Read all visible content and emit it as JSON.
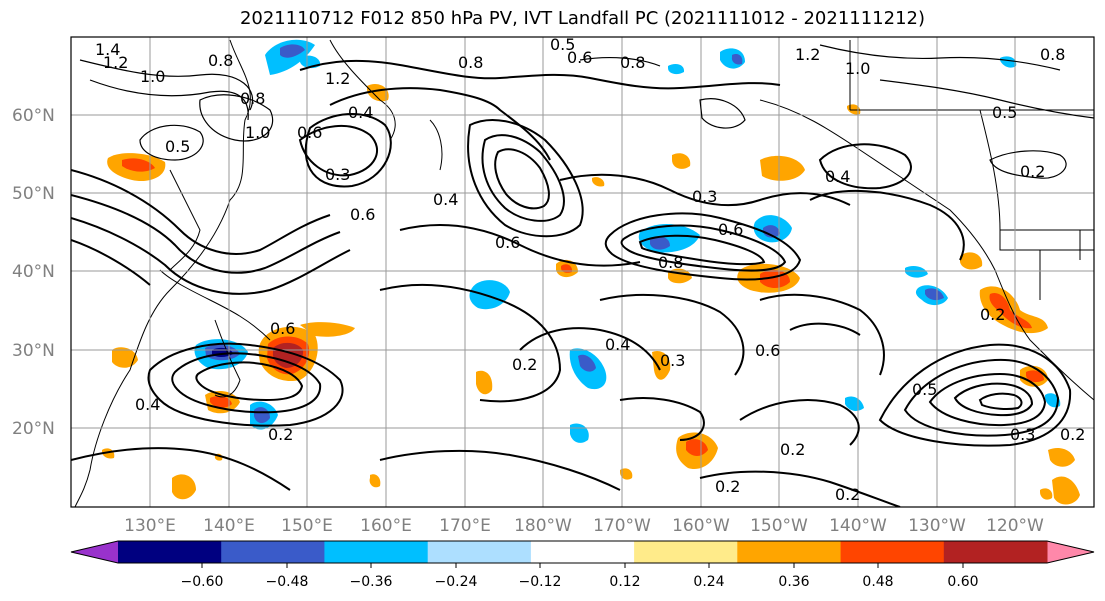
{
  "title": "2021110712 F012 850 hPa PV, IVT Landfall PC (2021111012 - 2021111212)",
  "lat_labels": [
    "60°N",
    "50°N",
    "40°N",
    "30°N",
    "20°N"
  ],
  "lon_labels": [
    "130°E",
    "140°E",
    "150°E",
    "160°E",
    "170°E",
    "180°W",
    "170°W",
    "160°W",
    "150°W",
    "140°W",
    "130°W",
    "120°W"
  ],
  "colorbar": {
    "colors": [
      "#9932CC",
      "#000080",
      "#3A5BC9",
      "#00BFFF",
      "#ADDFFF",
      "#FFFFFF",
      "#FFEB8A",
      "#FFA500",
      "#FF4500",
      "#B22222",
      "#FF88AA"
    ],
    "tick_labels": [
      "−0.60",
      "−0.48",
      "−0.36",
      "−0.24",
      "−0.12",
      "0.12",
      "0.24",
      "0.36",
      "0.48",
      "0.60"
    ]
  },
  "contour_labels": [
    {
      "text": "1.4"
    },
    {
      "text": "1.2"
    },
    {
      "text": "1.0"
    },
    {
      "text": "0.8"
    },
    {
      "text": "0.8"
    },
    {
      "text": "1.2"
    },
    {
      "text": "0.4"
    },
    {
      "text": "1.0"
    },
    {
      "text": "0.5"
    },
    {
      "text": "0.6"
    },
    {
      "text": "0.3"
    },
    {
      "text": "0.6"
    },
    {
      "text": "0.4"
    },
    {
      "text": "0.6"
    },
    {
      "text": "0.5"
    },
    {
      "text": "0.6"
    },
    {
      "text": "0.8"
    },
    {
      "text": "0.8"
    },
    {
      "text": "1.2"
    },
    {
      "text": "1.0"
    },
    {
      "text": "0.8"
    },
    {
      "text": "0.5"
    },
    {
      "text": "0.3"
    },
    {
      "text": "0.4"
    },
    {
      "text": "0.2"
    },
    {
      "text": "0.6"
    },
    {
      "text": "0.8"
    },
    {
      "text": "0.6"
    },
    {
      "text": "0.4"
    },
    {
      "text": "0.2"
    },
    {
      "text": "0.3"
    },
    {
      "text": "0.6"
    },
    {
      "text": "0.2"
    },
    {
      "text": "0.4"
    },
    {
      "text": "0.2"
    },
    {
      "text": "0.2"
    },
    {
      "text": "0.5"
    },
    {
      "text": "0.3"
    },
    {
      "text": "0.2"
    },
    {
      "text": "0.2"
    },
    {
      "text": "0.2"
    }
  ]
}
